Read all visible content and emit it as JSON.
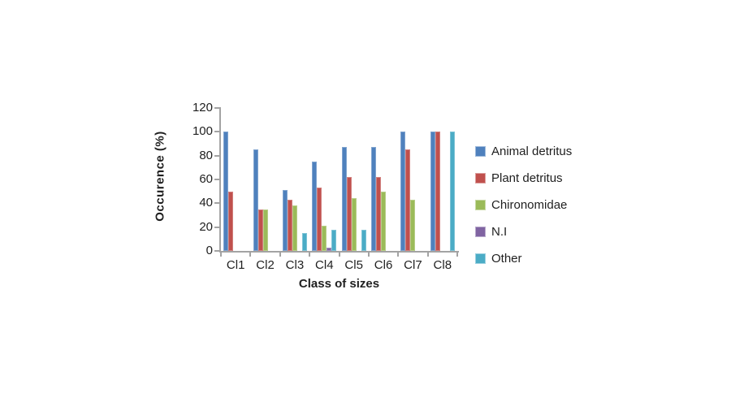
{
  "chart_data": {
    "type": "bar",
    "title": "",
    "xlabel": "Class of sizes",
    "ylabel": "Occurence (%)",
    "ylim": [
      0,
      120
    ],
    "yticks": [
      0,
      20,
      40,
      60,
      80,
      100,
      120
    ],
    "grid": false,
    "legend_position": "right",
    "categories": [
      "Cl1",
      "Cl2",
      "Cl3",
      "Cl4",
      "Cl5",
      "Cl6",
      "Cl7",
      "Cl8"
    ],
    "series": [
      {
        "name": "Animal detritus",
        "color": "#4F81BD",
        "values": [
          100,
          85,
          51,
          75,
          87,
          87,
          100,
          100
        ]
      },
      {
        "name": "Plant detritus",
        "color": "#C0504D",
        "values": [
          50,
          35,
          43,
          53,
          62,
          62,
          85,
          100
        ]
      },
      {
        "name": "Chironomidae",
        "color": "#9BBB59",
        "values": [
          0,
          35,
          38,
          21,
          44,
          50,
          43,
          0
        ]
      },
      {
        "name": "N.I",
        "color": "#8064A2",
        "values": [
          0,
          0,
          0,
          3,
          0,
          0,
          0,
          0
        ]
      },
      {
        "name": "Other",
        "color": "#4BACC6",
        "values": [
          0,
          0,
          15,
          18,
          18,
          0,
          0,
          100
        ]
      }
    ]
  },
  "colors": {
    "axis": "#A3A3A3",
    "text": "#1F1F1F",
    "background": "#FFFFFF"
  }
}
